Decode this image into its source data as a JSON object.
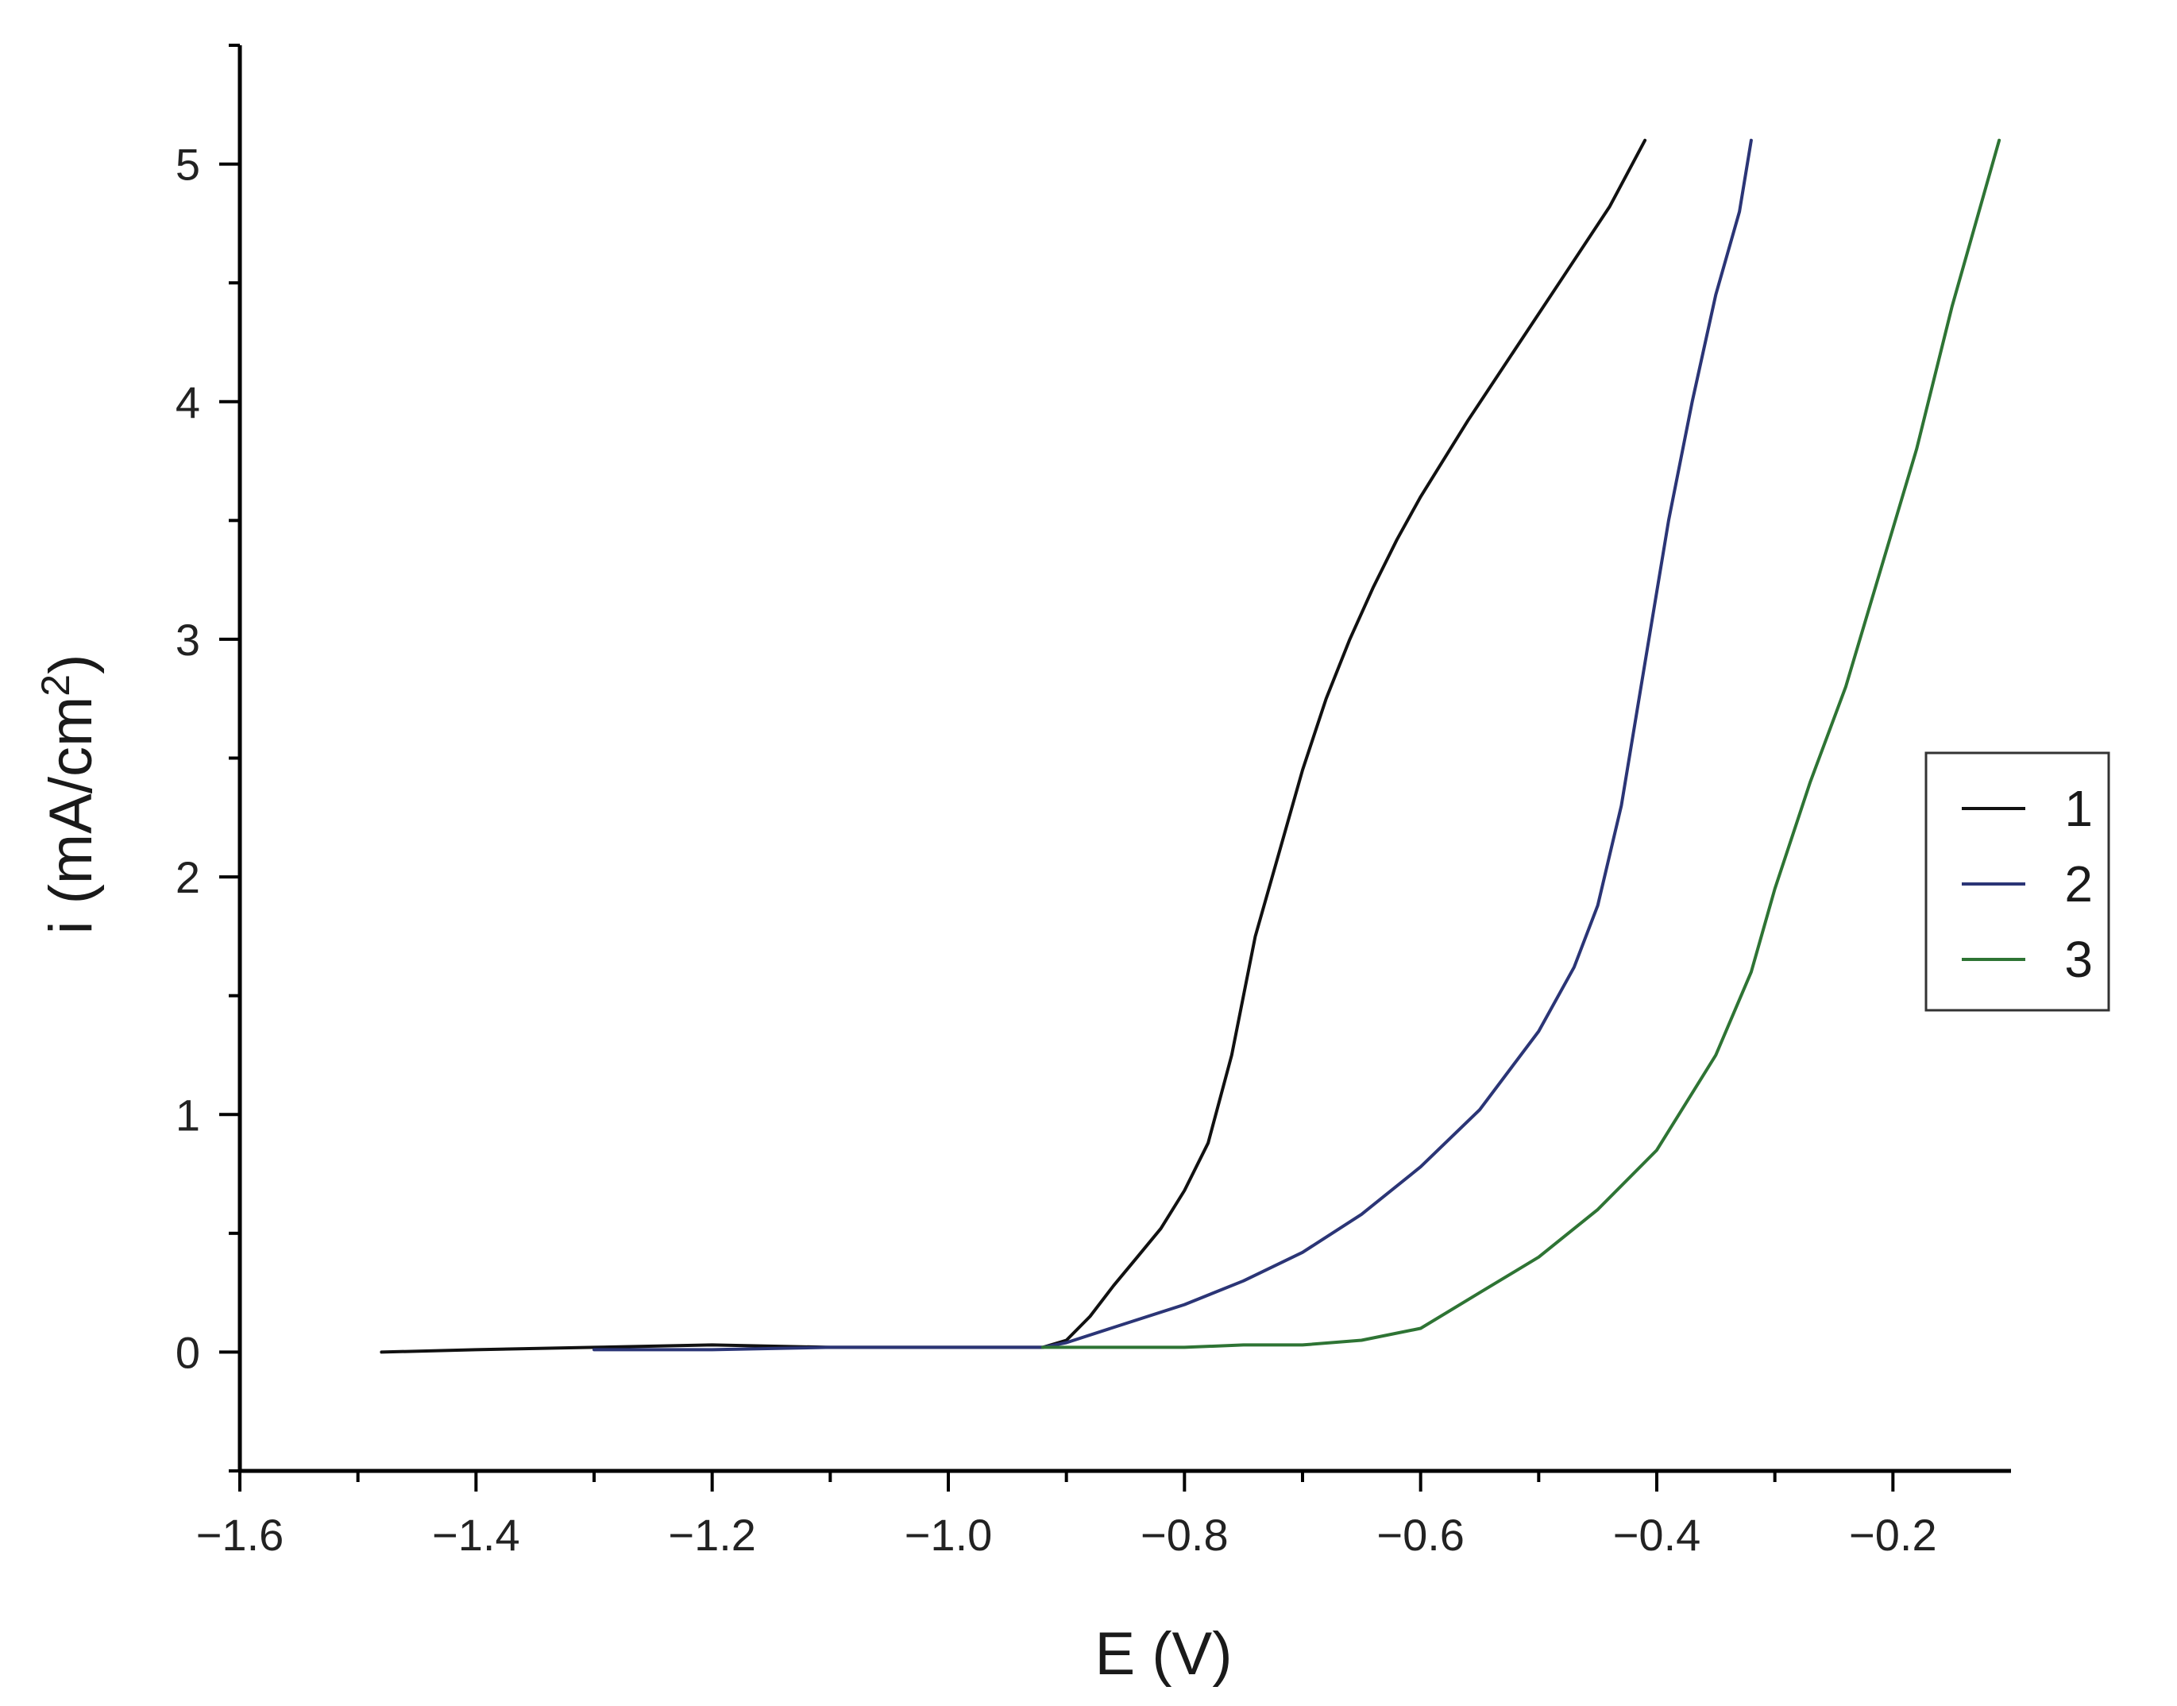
{
  "chart_data": {
    "type": "line",
    "xlabel": "E (V)",
    "ylabel": {
      "text": "i (mA/cm",
      "sup": "2",
      "close": ")"
    },
    "xlim": [
      -1.6,
      -0.1
    ],
    "ylim": [
      -0.5,
      5.5
    ],
    "x_ticks": [
      {
        "value": -1.6,
        "label": "−1.6"
      },
      {
        "value": -1.4,
        "label": "−1.4"
      },
      {
        "value": -1.2,
        "label": "−1.2"
      },
      {
        "value": -1.0,
        "label": "−1.0"
      },
      {
        "value": -0.8,
        "label": "−0.8"
      },
      {
        "value": -0.6,
        "label": "−0.6"
      },
      {
        "value": -0.4,
        "label": "−0.4"
      },
      {
        "value": -0.2,
        "label": "−0.2"
      }
    ],
    "y_ticks": [
      {
        "value": 0,
        "label": "0"
      },
      {
        "value": 1,
        "label": "1"
      },
      {
        "value": 2,
        "label": "2"
      },
      {
        "value": 3,
        "label": "3"
      },
      {
        "value": 4,
        "label": "4"
      },
      {
        "value": 5,
        "label": "5"
      }
    ],
    "grid": false,
    "legend": "right",
    "series": [
      {
        "name": "1",
        "color": "#111111",
        "points": [
          [
            -1.48,
            0.0
          ],
          [
            -1.4,
            0.01
          ],
          [
            -1.3,
            0.02
          ],
          [
            -1.2,
            0.03
          ],
          [
            -1.1,
            0.02
          ],
          [
            -1.0,
            0.02
          ],
          [
            -0.92,
            0.02
          ],
          [
            -0.9,
            0.05
          ],
          [
            -0.88,
            0.15
          ],
          [
            -0.86,
            0.28
          ],
          [
            -0.84,
            0.4
          ],
          [
            -0.82,
            0.52
          ],
          [
            -0.8,
            0.68
          ],
          [
            -0.78,
            0.88
          ],
          [
            -0.76,
            1.25
          ],
          [
            -0.74,
            1.75
          ],
          [
            -0.72,
            2.1
          ],
          [
            -0.7,
            2.45
          ],
          [
            -0.68,
            2.75
          ],
          [
            -0.66,
            3.0
          ],
          [
            -0.64,
            3.22
          ],
          [
            -0.62,
            3.42
          ],
          [
            -0.6,
            3.6
          ],
          [
            -0.56,
            3.92
          ],
          [
            -0.52,
            4.22
          ],
          [
            -0.48,
            4.52
          ],
          [
            -0.44,
            4.82
          ],
          [
            -0.41,
            5.1
          ]
        ]
      },
      {
        "name": "2",
        "color": "#2b3576",
        "points": [
          [
            -1.3,
            0.01
          ],
          [
            -1.2,
            0.01
          ],
          [
            -1.1,
            0.02
          ],
          [
            -1.0,
            0.02
          ],
          [
            -0.92,
            0.02
          ],
          [
            -0.9,
            0.04
          ],
          [
            -0.85,
            0.12
          ],
          [
            -0.8,
            0.2
          ],
          [
            -0.75,
            0.3
          ],
          [
            -0.7,
            0.42
          ],
          [
            -0.65,
            0.58
          ],
          [
            -0.6,
            0.78
          ],
          [
            -0.55,
            1.02
          ],
          [
            -0.5,
            1.35
          ],
          [
            -0.47,
            1.62
          ],
          [
            -0.45,
            1.88
          ],
          [
            -0.43,
            2.3
          ],
          [
            -0.41,
            2.9
          ],
          [
            -0.39,
            3.5
          ],
          [
            -0.37,
            4.0
          ],
          [
            -0.35,
            4.45
          ],
          [
            -0.33,
            4.8
          ],
          [
            -0.32,
            5.1
          ]
        ]
      },
      {
        "name": "3",
        "color": "#2e7434",
        "points": [
          [
            -0.92,
            0.02
          ],
          [
            -0.85,
            0.02
          ],
          [
            -0.8,
            0.02
          ],
          [
            -0.75,
            0.03
          ],
          [
            -0.7,
            0.03
          ],
          [
            -0.65,
            0.05
          ],
          [
            -0.6,
            0.1
          ],
          [
            -0.55,
            0.25
          ],
          [
            -0.5,
            0.4
          ],
          [
            -0.45,
            0.6
          ],
          [
            -0.4,
            0.85
          ],
          [
            -0.35,
            1.25
          ],
          [
            -0.32,
            1.6
          ],
          [
            -0.3,
            1.95
          ],
          [
            -0.27,
            2.4
          ],
          [
            -0.24,
            2.8
          ],
          [
            -0.21,
            3.3
          ],
          [
            -0.18,
            3.8
          ],
          [
            -0.15,
            4.4
          ],
          [
            -0.11,
            5.1
          ]
        ]
      }
    ]
  }
}
